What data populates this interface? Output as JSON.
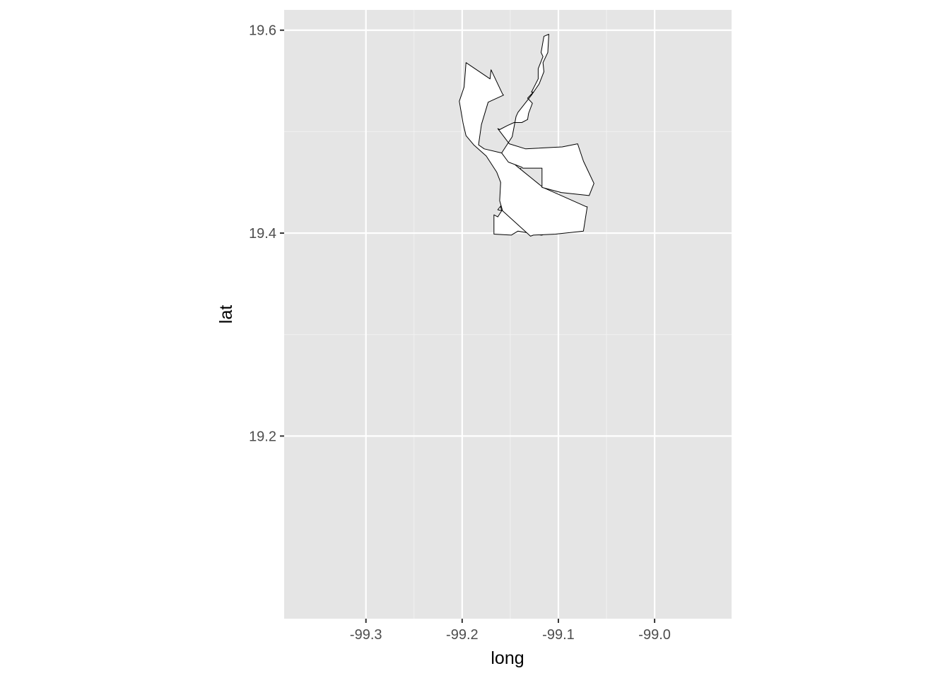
{
  "chart_data": {
    "type": "map",
    "title": "",
    "xlabel": "long",
    "ylabel": "lat",
    "xlim": [
      -99.385,
      -98.92
    ],
    "ylim": [
      19.02,
      19.62
    ],
    "xticks": [
      {
        "value": -99.3,
        "label": "-99.3"
      },
      {
        "value": -99.2,
        "label": "-99.2"
      },
      {
        "value": -99.1,
        "label": "-99.1"
      },
      {
        "value": -99.0,
        "label": "-99.0"
      }
    ],
    "yticks": [
      {
        "value": 19.2,
        "label": "19.2"
      },
      {
        "value": 19.4,
        "label": "19.4"
      },
      {
        "value": 19.6,
        "label": "19.6"
      }
    ],
    "grid": true,
    "panel_background": "#e5e5e5",
    "polygon_fill": "#ffffff",
    "polygon_stroke": "#000000",
    "polygons": [
      [
        [
          -99.167,
          19.418
        ],
        [
          -99.163,
          19.416
        ],
        [
          -99.159,
          19.422
        ],
        [
          -99.16,
          19.426
        ],
        [
          -99.149,
          19.448
        ],
        [
          -99.139,
          19.464
        ],
        [
          -99.144,
          19.447
        ],
        [
          -99.154,
          19.426
        ],
        [
          -99.158,
          19.422
        ],
        [
          -99.163,
          19.423
        ],
        [
          -99.158,
          19.429
        ],
        [
          -99.153,
          19.431
        ],
        [
          -99.149,
          19.425
        ],
        [
          -99.144,
          19.421
        ],
        [
          -99.138,
          19.425
        ],
        [
          -99.138,
          19.43
        ],
        [
          -99.134,
          19.435
        ],
        [
          -99.133,
          19.434
        ],
        [
          -99.139,
          19.446
        ],
        [
          -99.143,
          19.449
        ],
        [
          -99.148,
          19.464
        ],
        [
          -99.147,
          19.465
        ],
        [
          -99.119,
          19.445
        ],
        [
          -99.116,
          19.433
        ],
        [
          -99.095,
          19.433
        ],
        [
          -99.095,
          19.43
        ],
        [
          -99.074,
          19.417
        ],
        [
          -99.117,
          19.398
        ],
        [
          -99.118,
          19.398
        ],
        [
          -99.142,
          19.402
        ],
        [
          -99.149,
          19.398
        ],
        [
          -99.167,
          19.399
        ],
        [
          -99.167,
          19.418
        ]
      ],
      [
        [
          -99.196,
          19.568
        ],
        [
          -99.171,
          19.552
        ],
        [
          -99.17,
          19.561
        ],
        [
          -99.158,
          19.537
        ],
        [
          -99.157,
          19.536
        ],
        [
          -99.173,
          19.529
        ],
        [
          -99.18,
          19.507
        ],
        [
          -99.183,
          19.487
        ],
        [
          -99.177,
          19.483
        ],
        [
          -99.159,
          19.479
        ],
        [
          -99.142,
          19.465
        ],
        [
          -99.116,
          19.445
        ],
        [
          -99.071,
          19.426
        ],
        [
          -99.07,
          19.426
        ],
        [
          -99.074,
          19.402
        ],
        [
          -99.103,
          19.399
        ],
        [
          -99.126,
          19.398
        ],
        [
          -99.129,
          19.397
        ],
        [
          -99.158,
          19.422
        ],
        [
          -99.161,
          19.432
        ],
        [
          -99.16,
          19.45
        ],
        [
          -99.164,
          19.46
        ],
        [
          -99.175,
          19.476
        ],
        [
          -99.188,
          19.487
        ],
        [
          -99.196,
          19.496
        ],
        [
          -99.199,
          19.508
        ],
        [
          -99.203,
          19.53
        ],
        [
          -99.198,
          19.544
        ],
        [
          -99.196,
          19.568
        ]
      ],
      [
        [
          -99.11,
          19.596
        ],
        [
          -99.115,
          19.594
        ],
        [
          -99.118,
          19.578
        ],
        [
          -99.116,
          19.574
        ],
        [
          -99.121,
          19.562
        ],
        [
          -99.121,
          19.552
        ],
        [
          -99.128,
          19.539
        ],
        [
          -99.126,
          19.539
        ],
        [
          -99.132,
          19.533
        ],
        [
          -99.127,
          19.528
        ],
        [
          -99.131,
          19.518
        ],
        [
          -99.132,
          19.512
        ],
        [
          -99.138,
          19.509
        ],
        [
          -99.146,
          19.509
        ],
        [
          -99.153,
          19.506
        ],
        [
          -99.161,
          19.502
        ],
        [
          -99.163,
          19.503
        ],
        [
          -99.151,
          19.488
        ],
        [
          -99.134,
          19.483
        ],
        [
          -99.096,
          19.485
        ],
        [
          -99.08,
          19.488
        ],
        [
          -99.074,
          19.471
        ],
        [
          -99.063,
          19.449
        ],
        [
          -99.068,
          19.437
        ],
        [
          -99.097,
          19.44
        ],
        [
          -99.117,
          19.445
        ],
        [
          -99.117,
          19.464
        ],
        [
          -99.137,
          19.464
        ],
        [
          -99.138,
          19.465
        ],
        [
          -99.152,
          19.47
        ],
        [
          -99.159,
          19.479
        ],
        [
          -99.148,
          19.495
        ],
        [
          -99.144,
          19.515
        ],
        [
          -99.142,
          19.519
        ],
        [
          -99.128,
          19.536
        ],
        [
          -99.12,
          19.547
        ],
        [
          -99.115,
          19.559
        ],
        [
          -99.116,
          19.568
        ],
        [
          -99.111,
          19.578
        ],
        [
          -99.11,
          19.596
        ]
      ]
    ]
  }
}
